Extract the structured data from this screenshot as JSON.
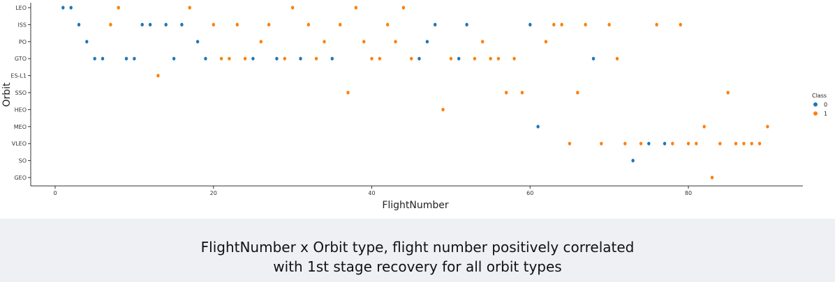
{
  "chart_data": {
    "type": "scatter",
    "xlabel": "FlightNumber",
    "ylabel": "Orbit",
    "xlim": [
      -4,
      94
    ],
    "xticks": [
      0,
      20,
      40,
      60,
      80
    ],
    "categories": [
      "LEO",
      "ISS",
      "PO",
      "GTO",
      "ES-L1",
      "SSO",
      "HEO",
      "MEO",
      "VLEO",
      "SO",
      "GEO"
    ],
    "legend": {
      "title": "Class",
      "placement": "right",
      "entries": [
        "0",
        "1"
      ]
    },
    "grid": false,
    "series": [
      {
        "name": "0",
        "color": "#1f77b4",
        "points": [
          {
            "x": 1,
            "y": "LEO"
          },
          {
            "x": 2,
            "y": "LEO"
          },
          {
            "x": 3,
            "y": "ISS"
          },
          {
            "x": 4,
            "y": "PO"
          },
          {
            "x": 5,
            "y": "GTO"
          },
          {
            "x": 6,
            "y": "GTO"
          },
          {
            "x": 9,
            "y": "GTO"
          },
          {
            "x": 10,
            "y": "GTO"
          },
          {
            "x": 11,
            "y": "ISS"
          },
          {
            "x": 12,
            "y": "ISS"
          },
          {
            "x": 14,
            "y": "ISS"
          },
          {
            "x": 15,
            "y": "GTO"
          },
          {
            "x": 16,
            "y": "ISS"
          },
          {
            "x": 18,
            "y": "PO"
          },
          {
            "x": 19,
            "y": "GTO"
          },
          {
            "x": 25,
            "y": "GTO"
          },
          {
            "x": 28,
            "y": "GTO"
          },
          {
            "x": 31,
            "y": "GTO"
          },
          {
            "x": 35,
            "y": "GTO"
          },
          {
            "x": 46,
            "y": "GTO"
          },
          {
            "x": 47,
            "y": "PO"
          },
          {
            "x": 48,
            "y": "ISS"
          },
          {
            "x": 51,
            "y": "GTO"
          },
          {
            "x": 52,
            "y": "ISS"
          },
          {
            "x": 60,
            "y": "ISS"
          },
          {
            "x": 61,
            "y": "MEO"
          },
          {
            "x": 68,
            "y": "GTO"
          },
          {
            "x": 73,
            "y": "SO"
          },
          {
            "x": 75,
            "y": "VLEO"
          },
          {
            "x": 77,
            "y": "VLEO"
          }
        ]
      },
      {
        "name": "1",
        "color": "#ff7f0e",
        "points": [
          {
            "x": 7,
            "y": "ISS"
          },
          {
            "x": 8,
            "y": "LEO"
          },
          {
            "x": 13,
            "y": "ES-L1"
          },
          {
            "x": 17,
            "y": "LEO"
          },
          {
            "x": 20,
            "y": "ISS"
          },
          {
            "x": 21,
            "y": "GTO"
          },
          {
            "x": 22,
            "y": "GTO"
          },
          {
            "x": 23,
            "y": "ISS"
          },
          {
            "x": 24,
            "y": "GTO"
          },
          {
            "x": 26,
            "y": "PO"
          },
          {
            "x": 27,
            "y": "ISS"
          },
          {
            "x": 29,
            "y": "GTO"
          },
          {
            "x": 30,
            "y": "LEO"
          },
          {
            "x": 32,
            "y": "ISS"
          },
          {
            "x": 33,
            "y": "GTO"
          },
          {
            "x": 34,
            "y": "PO"
          },
          {
            "x": 36,
            "y": "ISS"
          },
          {
            "x": 37,
            "y": "SSO"
          },
          {
            "x": 38,
            "y": "LEO"
          },
          {
            "x": 39,
            "y": "PO"
          },
          {
            "x": 40,
            "y": "GTO"
          },
          {
            "x": 41,
            "y": "GTO"
          },
          {
            "x": 42,
            "y": "ISS"
          },
          {
            "x": 43,
            "y": "PO"
          },
          {
            "x": 44,
            "y": "LEO"
          },
          {
            "x": 45,
            "y": "GTO"
          },
          {
            "x": 49,
            "y": "HEO"
          },
          {
            "x": 50,
            "y": "GTO"
          },
          {
            "x": 53,
            "y": "GTO"
          },
          {
            "x": 54,
            "y": "PO"
          },
          {
            "x": 55,
            "y": "GTO"
          },
          {
            "x": 56,
            "y": "GTO"
          },
          {
            "x": 57,
            "y": "SSO"
          },
          {
            "x": 58,
            "y": "GTO"
          },
          {
            "x": 59,
            "y": "SSO"
          },
          {
            "x": 62,
            "y": "PO"
          },
          {
            "x": 63,
            "y": "ISS"
          },
          {
            "x": 64,
            "y": "ISS"
          },
          {
            "x": 65,
            "y": "VLEO"
          },
          {
            "x": 66,
            "y": "SSO"
          },
          {
            "x": 67,
            "y": "ISS"
          },
          {
            "x": 69,
            "y": "VLEO"
          },
          {
            "x": 70,
            "y": "ISS"
          },
          {
            "x": 71,
            "y": "GTO"
          },
          {
            "x": 72,
            "y": "VLEO"
          },
          {
            "x": 74,
            "y": "VLEO"
          },
          {
            "x": 76,
            "y": "ISS"
          },
          {
            "x": 78,
            "y": "VLEO"
          },
          {
            "x": 79,
            "y": "ISS"
          },
          {
            "x": 80,
            "y": "VLEO"
          },
          {
            "x": 81,
            "y": "VLEO"
          },
          {
            "x": 82,
            "y": "MEO"
          },
          {
            "x": 83,
            "y": "GEO"
          },
          {
            "x": 84,
            "y": "VLEO"
          },
          {
            "x": 85,
            "y": "SSO"
          },
          {
            "x": 86,
            "y": "VLEO"
          },
          {
            "x": 87,
            "y": "VLEO"
          },
          {
            "x": 88,
            "y": "VLEO"
          },
          {
            "x": 89,
            "y": "VLEO"
          },
          {
            "x": 90,
            "y": "MEO"
          }
        ]
      }
    ]
  },
  "caption": {
    "line1": "FlightNumber x Orbit type, flight number positively correlated",
    "line2": "with 1st stage recovery for all orbit types"
  }
}
